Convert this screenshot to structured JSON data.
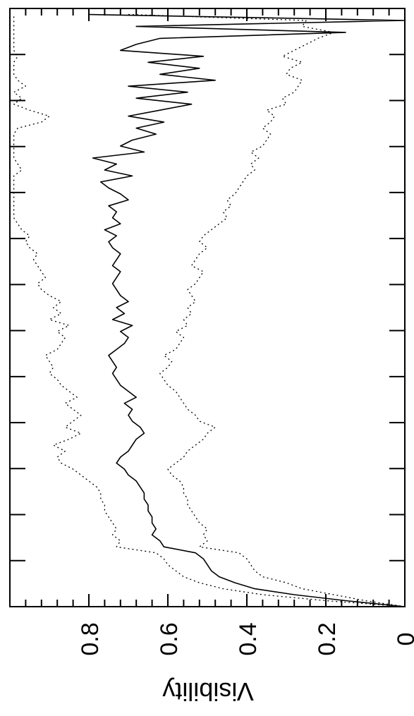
{
  "chart_data": {
    "type": "line",
    "orientation": "rotated-90-clockwise",
    "title": "",
    "xlabel": "",
    "ylabel": "Visibility",
    "xlim": [
      0,
      1
    ],
    "ylim": [
      0,
      1
    ],
    "y_ticks": [
      0,
      0.2,
      0.4,
      0.6,
      0.8
    ],
    "y_tick_labels": [
      "0",
      "0.2",
      "0.4",
      "0.6",
      "0.8"
    ],
    "grid": false,
    "legend": "none",
    "series": [
      {
        "style": "solid",
        "x": [
          0.0,
          0.01,
          0.02,
          0.03,
          0.04,
          0.05,
          0.06,
          0.07,
          0.08,
          0.09,
          0.1,
          0.11,
          0.12,
          0.13,
          0.14,
          0.15,
          0.16,
          0.17,
          0.18,
          0.19,
          0.2,
          0.21,
          0.22,
          0.23,
          0.24,
          0.25,
          0.26,
          0.27,
          0.28,
          0.29,
          0.3,
          0.31,
          0.32,
          0.33,
          0.34,
          0.35,
          0.36,
          0.37,
          0.38,
          0.39,
          0.4,
          0.41,
          0.42,
          0.43,
          0.44,
          0.45,
          0.46,
          0.47,
          0.48,
          0.49,
          0.5,
          0.51,
          0.52,
          0.53,
          0.54,
          0.55,
          0.56,
          0.57,
          0.58,
          0.59,
          0.6,
          0.61,
          0.62,
          0.63,
          0.64,
          0.65,
          0.66,
          0.67,
          0.68,
          0.69,
          0.7,
          0.71,
          0.72,
          0.73,
          0.74,
          0.75,
          0.76,
          0.77,
          0.78,
          0.79,
          0.8,
          0.81,
          0.82,
          0.83,
          0.84,
          0.85,
          0.86,
          0.87,
          0.88,
          0.89,
          0.9,
          0.91,
          0.92,
          0.93,
          0.94,
          0.95,
          0.96,
          0.97,
          0.98,
          0.99
        ],
        "y": [
          0.0,
          0.15,
          0.28,
          0.38,
          0.43,
          0.47,
          0.49,
          0.5,
          0.51,
          0.53,
          0.61,
          0.62,
          0.64,
          0.63,
          0.64,
          0.64,
          0.65,
          0.65,
          0.66,
          0.66,
          0.67,
          0.68,
          0.7,
          0.71,
          0.73,
          0.72,
          0.7,
          0.69,
          0.68,
          0.66,
          0.67,
          0.69,
          0.7,
          0.69,
          0.71,
          0.68,
          0.7,
          0.72,
          0.73,
          0.74,
          0.73,
          0.74,
          0.75,
          0.73,
          0.71,
          0.7,
          0.72,
          0.69,
          0.74,
          0.71,
          0.73,
          0.7,
          0.72,
          0.73,
          0.74,
          0.73,
          0.72,
          0.74,
          0.73,
          0.72,
          0.74,
          0.75,
          0.73,
          0.76,
          0.72,
          0.74,
          0.73,
          0.75,
          0.7,
          0.72,
          0.75,
          0.77,
          0.69,
          0.76,
          0.73,
          0.79,
          0.66,
          0.72,
          0.69,
          0.63,
          0.68,
          0.61,
          0.7,
          0.62,
          0.54,
          0.68,
          0.55,
          0.7,
          0.48,
          0.62,
          0.52,
          0.65,
          0.51,
          0.72,
          0.68,
          0.62,
          0.15,
          0.68,
          0.0,
          0.8
        ]
      },
      {
        "style": "dotted",
        "x": [
          0.0,
          0.01,
          0.02,
          0.03,
          0.04,
          0.05,
          0.06,
          0.07,
          0.08,
          0.09,
          0.1,
          0.11,
          0.12,
          0.13,
          0.14,
          0.15,
          0.16,
          0.17,
          0.18,
          0.19,
          0.2,
          0.21,
          0.22,
          0.23,
          0.24,
          0.25,
          0.26,
          0.27,
          0.28,
          0.29,
          0.3,
          0.31,
          0.32,
          0.33,
          0.34,
          0.35,
          0.36,
          0.37,
          0.38,
          0.39,
          0.4,
          0.41,
          0.42,
          0.43,
          0.44,
          0.45,
          0.46,
          0.47,
          0.48,
          0.49,
          0.5,
          0.51,
          0.52,
          0.53,
          0.54,
          0.55,
          0.56,
          0.57,
          0.58,
          0.59,
          0.6,
          0.61,
          0.62,
          0.63,
          0.64,
          0.65,
          0.66,
          0.67,
          0.68,
          0.69,
          0.7,
          0.71,
          0.72,
          0.73,
          0.74,
          0.75,
          0.76,
          0.77,
          0.78,
          0.79,
          0.8,
          0.81,
          0.82,
          0.83,
          0.84,
          0.85,
          0.86,
          0.87,
          0.88,
          0.89,
          0.9,
          0.91,
          0.92,
          0.93,
          0.94,
          0.95,
          0.96,
          0.97,
          0.98,
          0.99
        ],
        "y": [
          0.0,
          0.1,
          0.18,
          0.26,
          0.3,
          0.36,
          0.38,
          0.39,
          0.4,
          0.42,
          0.52,
          0.5,
          0.51,
          0.5,
          0.52,
          0.53,
          0.54,
          0.55,
          0.55,
          0.56,
          0.56,
          0.57,
          0.59,
          0.6,
          0.58,
          0.56,
          0.55,
          0.53,
          0.51,
          0.5,
          0.48,
          0.52,
          0.53,
          0.55,
          0.56,
          0.57,
          0.58,
          0.6,
          0.61,
          0.62,
          0.6,
          0.59,
          0.61,
          0.58,
          0.57,
          0.56,
          0.58,
          0.55,
          0.56,
          0.54,
          0.55,
          0.53,
          0.54,
          0.55,
          0.53,
          0.52,
          0.51,
          0.54,
          0.53,
          0.52,
          0.5,
          0.52,
          0.51,
          0.49,
          0.47,
          0.45,
          0.46,
          0.44,
          0.45,
          0.43,
          0.42,
          0.41,
          0.4,
          0.38,
          0.39,
          0.37,
          0.39,
          0.36,
          0.35,
          0.34,
          0.36,
          0.34,
          0.33,
          0.35,
          0.3,
          0.31,
          0.28,
          0.27,
          0.26,
          0.3,
          0.29,
          0.26,
          0.31,
          0.28,
          0.25,
          0.22,
          0.18,
          0.26,
          0.25,
          0.7
        ]
      },
      {
        "style": "dotted",
        "x": [
          0.0,
          0.01,
          0.02,
          0.03,
          0.04,
          0.05,
          0.06,
          0.07,
          0.08,
          0.09,
          0.1,
          0.11,
          0.12,
          0.13,
          0.14,
          0.15,
          0.16,
          0.17,
          0.18,
          0.19,
          0.2,
          0.21,
          0.22,
          0.23,
          0.24,
          0.25,
          0.26,
          0.27,
          0.28,
          0.29,
          0.3,
          0.31,
          0.32,
          0.33,
          0.34,
          0.35,
          0.36,
          0.37,
          0.38,
          0.39,
          0.4,
          0.41,
          0.42,
          0.43,
          0.44,
          0.45,
          0.46,
          0.47,
          0.48,
          0.49,
          0.5,
          0.51,
          0.52,
          0.53,
          0.54,
          0.55,
          0.56,
          0.57,
          0.58,
          0.59,
          0.6,
          0.61,
          0.62,
          0.63,
          0.64,
          0.65,
          0.66,
          0.67,
          0.68,
          0.69,
          0.7,
          0.71,
          0.72,
          0.73,
          0.74,
          0.75,
          0.76,
          0.77,
          0.78,
          0.79,
          0.8,
          0.81,
          0.82,
          0.83,
          0.84,
          0.85,
          0.86,
          0.87,
          0.88,
          0.89,
          0.9,
          0.91,
          0.92,
          0.93,
          0.94,
          0.95,
          0.96,
          0.97,
          0.98,
          0.99
        ],
        "y": [
          0.0,
          0.2,
          0.36,
          0.46,
          0.52,
          0.56,
          0.58,
          0.6,
          0.61,
          0.63,
          0.73,
          0.72,
          0.74,
          0.73,
          0.74,
          0.75,
          0.76,
          0.76,
          0.77,
          0.77,
          0.78,
          0.8,
          0.82,
          0.84,
          0.87,
          0.88,
          0.86,
          0.89,
          0.85,
          0.82,
          0.86,
          0.84,
          0.82,
          0.84,
          0.86,
          0.83,
          0.85,
          0.87,
          0.88,
          0.9,
          0.89,
          0.9,
          0.91,
          0.88,
          0.87,
          0.86,
          0.88,
          0.85,
          0.9,
          0.87,
          0.89,
          0.87,
          0.9,
          0.92,
          0.93,
          0.91,
          0.92,
          0.93,
          0.94,
          0.93,
          0.95,
          0.96,
          0.95,
          0.97,
          0.98,
          0.99,
          0.99,
          0.99,
          0.99,
          0.99,
          0.99,
          0.99,
          0.99,
          0.97,
          0.98,
          0.99,
          0.99,
          0.99,
          0.99,
          0.99,
          0.98,
          0.92,
          0.9,
          0.95,
          0.99,
          0.97,
          0.99,
          0.96,
          0.98,
          0.99,
          0.99,
          0.99,
          0.98,
          0.99,
          0.99,
          0.99,
          0.99,
          0.99,
          0.99,
          0.99
        ]
      }
    ]
  }
}
